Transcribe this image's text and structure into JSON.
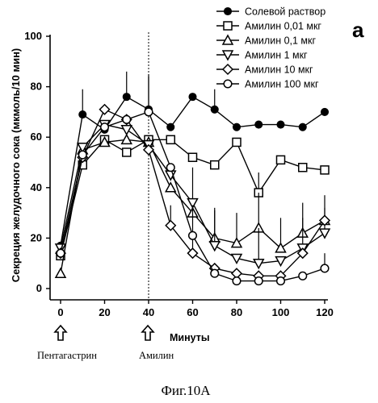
{
  "panel_letter": "a",
  "figure_caption": "Фиг.10А",
  "annotations": {
    "pentagastrin": "Пентагастрин",
    "amylin": "Амилин",
    "minutes": "Минуты"
  },
  "chart_data": {
    "type": "line",
    "title": "",
    "xlabel": "Минуты",
    "ylabel": "Секреция желудочного сока (мкмоль/10 мин)",
    "xlim": [
      0,
      120
    ],
    "ylim": [
      0,
      100
    ],
    "x_ticks": [
      0,
      20,
      40,
      60,
      80,
      100,
      120
    ],
    "y_ticks": [
      0,
      20,
      40,
      60,
      80,
      100
    ],
    "grid": false,
    "legend_position": "top-right",
    "vertical_marker_x": 40,
    "x": [
      0,
      10,
      20,
      30,
      40,
      50,
      60,
      70,
      80,
      90,
      100,
      110,
      120
    ],
    "series": [
      {
        "name": "Солевой раствор",
        "marker": "filled-circle",
        "values": [
          17,
          69,
          63,
          76,
          71,
          64,
          76,
          71,
          64,
          65,
          65,
          64,
          70
        ],
        "errors": [
          0,
          10,
          0,
          10,
          14,
          0,
          0,
          8,
          0,
          0,
          0,
          0,
          0
        ]
      },
      {
        "name": "Амилин 0,01 мкг",
        "marker": "open-square",
        "values": [
          13,
          49,
          59,
          54,
          59,
          59,
          52,
          49,
          58,
          38,
          51,
          48,
          47
        ],
        "errors": [
          0,
          0,
          0,
          0,
          0,
          0,
          0,
          0,
          0,
          0,
          0,
          0,
          0
        ]
      },
      {
        "name": "Амилин 0,1 мкг",
        "marker": "open-triangle-up",
        "values": [
          6,
          55,
          58,
          59,
          58,
          40,
          30,
          20,
          18,
          24,
          16,
          22,
          27
        ],
        "errors": [
          0,
          0,
          0,
          0,
          0,
          0,
          0,
          0,
          0,
          0,
          0,
          0,
          0
        ]
      },
      {
        "name": "Амилин 1 мкг",
        "marker": "open-triangle-down",
        "values": [
          16,
          56,
          65,
          63,
          57,
          45,
          34,
          17,
          12,
          10,
          11,
          16,
          22
        ],
        "errors": [
          0,
          0,
          0,
          0,
          0,
          0,
          0,
          0,
          0,
          0,
          0,
          0,
          0
        ]
      },
      {
        "name": "Амилин 10 мкг",
        "marker": "open-diamond",
        "values": [
          14,
          52,
          71,
          67,
          55,
          25,
          14,
          8,
          6,
          5,
          5,
          14,
          27
        ],
        "errors": [
          0,
          0,
          0,
          0,
          0,
          0,
          0,
          0,
          0,
          0,
          0,
          0,
          0
        ]
      },
      {
        "name": "Амилин 100 мкг",
        "marker": "open-circle",
        "values": [
          14,
          53,
          64,
          67,
          70,
          48,
          21,
          6,
          3,
          3,
          3,
          5,
          8
        ],
        "errors": [
          0,
          0,
          0,
          0,
          0,
          0,
          0,
          0,
          0,
          0,
          0,
          0,
          0
        ]
      }
    ]
  }
}
